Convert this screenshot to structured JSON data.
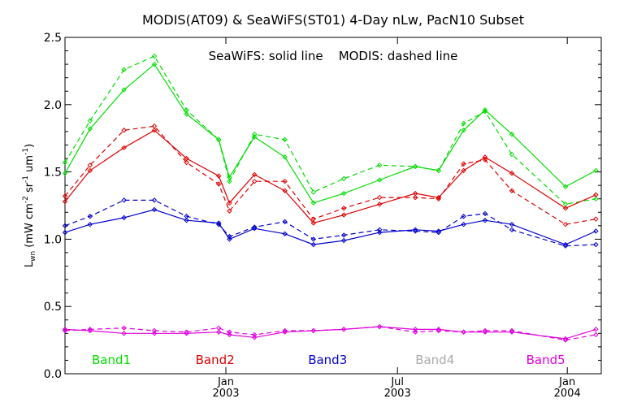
{
  "chart_data": {
    "type": "line",
    "title": "MODIS(AT09) & SeaWiFS(ST01) 4-Day nLw, PacN10 Subset",
    "annotation": "SeaWiFS: solid line    MODIS: dashed line",
    "ylabel": {
      "main": "L",
      "sub": "wn",
      "rest": " (mW cm",
      "sup1": "-2",
      "mid": " sr",
      "sup2": "-1",
      "mid2": " um",
      "sup3": "-1",
      "end": ")"
    },
    "xlim": [
      0,
      30
    ],
    "ylim": [
      0,
      2.5
    ],
    "y_ticks": [
      0.0,
      0.5,
      1.0,
      1.5,
      2.0,
      2.5
    ],
    "y_tick_labels": [
      "0.0",
      "0.5",
      "1.0",
      "1.5",
      "2.0",
      "2.5"
    ],
    "x_ticks": [
      {
        "x": 9,
        "month": "Jan",
        "year": "2003"
      },
      {
        "x": 18.6,
        "month": "Jul",
        "year": "2003"
      },
      {
        "x": 28.1,
        "month": "Jan",
        "year": "2004"
      }
    ],
    "grid": false,
    "legend_placement": "bottom",
    "series": [
      {
        "name": "Band1",
        "color": "#00dd00",
        "legend_x": 1.5,
        "seawifs": {
          "x": [
            0,
            1.4,
            3.3,
            5,
            6.8,
            8.6,
            9.2,
            10.6,
            12.3,
            13.9,
            15.6,
            17.6,
            19.6,
            20.9,
            22.3,
            23.5,
            25.0,
            26.4,
            28.0,
            29.7
          ],
          "y": [
            1.49,
            1.82,
            2.11,
            2.3,
            1.93,
            1.74,
            1.46,
            1.76,
            1.61,
            1.27,
            1.34,
            1.44,
            1.54,
            1.51,
            1.81,
            1.96,
            1.78,
            null,
            1.39,
            1.51
          ]
        },
        "modis": {
          "x": [
            0,
            1.4,
            3.3,
            5,
            6.8,
            8.6,
            9.2,
            10.6,
            12.3,
            13.9,
            15.6,
            17.6,
            19.6,
            20.9,
            22.3,
            23.5,
            25.0,
            26.4,
            28.0,
            29.7
          ],
          "y": [
            1.57,
            1.88,
            2.26,
            2.36,
            1.96,
            1.74,
            1.43,
            1.78,
            1.74,
            1.35,
            1.45,
            1.55,
            1.54,
            1.51,
            1.86,
            1.95,
            1.63,
            null,
            1.26,
            1.3
          ]
        }
      },
      {
        "name": "Band2",
        "color": "#dd0000",
        "legend_x": 7.3,
        "seawifs": {
          "x": [
            0,
            1.4,
            3.3,
            5,
            6.8,
            8.6,
            9.2,
            10.6,
            12.3,
            13.9,
            15.6,
            17.6,
            19.6,
            20.9,
            22.3,
            23.5,
            25.0,
            26.4,
            28.0,
            29.7
          ],
          "y": [
            1.28,
            1.51,
            1.68,
            1.81,
            1.6,
            1.47,
            1.27,
            1.48,
            1.36,
            1.12,
            1.18,
            1.26,
            1.34,
            1.31,
            1.51,
            1.61,
            1.49,
            null,
            1.23,
            1.33
          ]
        },
        "modis": {
          "x": [
            0,
            1.4,
            3.3,
            5,
            6.8,
            8.6,
            9.2,
            10.6,
            12.3,
            13.9,
            15.6,
            17.6,
            19.6,
            20.9,
            22.3,
            23.5,
            25.0,
            26.4,
            28.0,
            29.7
          ],
          "y": [
            1.32,
            1.55,
            1.81,
            1.84,
            1.57,
            1.41,
            1.21,
            1.43,
            1.43,
            1.15,
            1.23,
            1.31,
            1.31,
            1.3,
            1.56,
            1.59,
            1.36,
            null,
            1.11,
            1.15
          ]
        }
      },
      {
        "name": "Band3",
        "color": "#0000cc",
        "legend_x": 13.6,
        "seawifs": {
          "x": [
            0,
            1.4,
            3.3,
            5,
            6.8,
            8.6,
            9.2,
            10.6,
            12.3,
            13.9,
            15.6,
            17.6,
            19.6,
            20.9,
            22.3,
            23.5,
            25.0,
            26.4,
            28.0,
            29.7
          ],
          "y": [
            1.05,
            1.11,
            1.16,
            1.22,
            1.14,
            1.12,
            1.0,
            1.08,
            1.04,
            0.96,
            0.99,
            1.05,
            1.07,
            1.06,
            1.11,
            1.14,
            1.11,
            null,
            0.96,
            1.06
          ]
        },
        "modis": {
          "x": [
            0,
            1.4,
            3.3,
            5,
            6.8,
            8.6,
            9.2,
            10.6,
            12.3,
            13.9,
            15.6,
            17.6,
            19.6,
            20.9,
            22.3,
            23.5,
            25.0,
            26.4,
            28.0,
            29.7
          ],
          "y": [
            1.1,
            1.17,
            1.29,
            1.29,
            1.17,
            1.11,
            1.02,
            1.09,
            1.13,
            1.0,
            1.03,
            1.07,
            1.06,
            1.05,
            1.17,
            1.19,
            1.07,
            null,
            0.95,
            0.96
          ]
        }
      },
      {
        "name": "Band4",
        "color": "#aaaaaa",
        "legend_x": 19.6,
        "seawifs": {
          "x": [],
          "y": []
        },
        "modis": {
          "x": [],
          "y": []
        }
      },
      {
        "name": "Band5",
        "color": "#dd00dd",
        "legend_x": 25.8,
        "seawifs": {
          "x": [
            0,
            1.4,
            3.3,
            5,
            6.8,
            8.6,
            9.2,
            10.6,
            12.3,
            13.9,
            15.6,
            17.6,
            19.6,
            20.9,
            22.3,
            23.5,
            25.0,
            26.4,
            28.0,
            29.7
          ],
          "y": [
            0.33,
            0.32,
            0.3,
            0.3,
            0.3,
            0.31,
            0.29,
            0.27,
            0.31,
            0.32,
            0.33,
            0.35,
            0.33,
            0.33,
            0.31,
            0.31,
            0.31,
            null,
            0.26,
            0.33
          ]
        },
        "modis": {
          "x": [
            0,
            1.4,
            3.3,
            5,
            6.8,
            8.6,
            9.2,
            10.6,
            12.3,
            13.9,
            15.6,
            17.6,
            19.6,
            20.9,
            22.3,
            23.5,
            25.0,
            26.4,
            28.0,
            29.7
          ],
          "y": [
            0.32,
            0.33,
            0.34,
            0.32,
            0.31,
            0.34,
            0.31,
            0.29,
            0.32,
            0.32,
            0.33,
            0.35,
            0.31,
            0.32,
            0.31,
            0.32,
            0.32,
            null,
            0.25,
            0.29
          ]
        }
      }
    ]
  }
}
